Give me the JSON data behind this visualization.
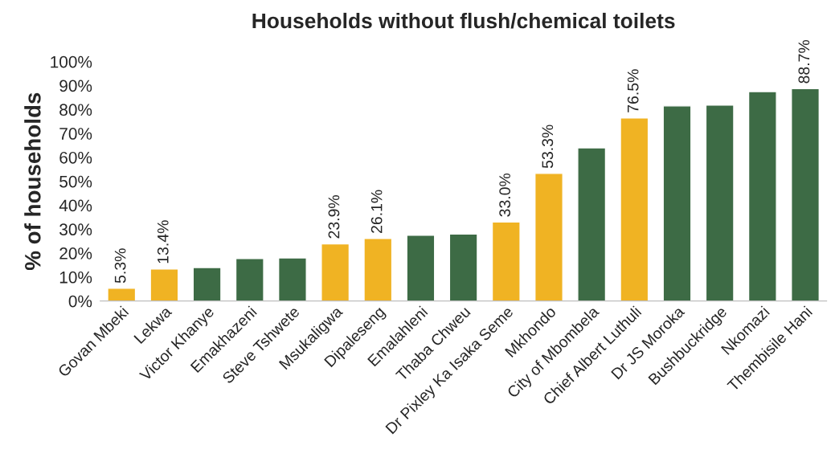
{
  "chart_data": {
    "type": "bar",
    "title": "Households without flush/chemical toilets",
    "ylabel": "% of households",
    "categories": [
      "Govan Mbeki",
      "Lekwa",
      "Victor Khanye",
      "Emakhazeni",
      "Steve Tshwete",
      "Msukaligwa",
      "Dipaleseng",
      "Emalahleni",
      "Thaba Chweu",
      "Dr Pixley Ka Isaka Seme",
      "Mkhondo",
      "City of Mbombela",
      "Chief Albert Luthuli",
      "Dr JS Moroka",
      "Bushbuckridge",
      "Nkomazi",
      "Thembisile Hani"
    ],
    "values": [
      5.3,
      13.4,
      14.0,
      17.7,
      18.0,
      23.9,
      26.1,
      27.5,
      28.0,
      33.0,
      53.3,
      64.0,
      76.5,
      81.5,
      81.8,
      87.5,
      88.7
    ],
    "value_labels": [
      "5.3%",
      "13.4%",
      null,
      null,
      null,
      "23.9%",
      "26.1%",
      null,
      null,
      "33.0%",
      "53.3%",
      null,
      "76.5%",
      null,
      null,
      null,
      "88.7%"
    ],
    "colors": [
      "#f0b323",
      "#f0b323",
      "#3d6b45",
      "#3d6b45",
      "#3d6b45",
      "#f0b323",
      "#f0b323",
      "#3d6b45",
      "#3d6b45",
      "#f0b323",
      "#f0b323",
      "#3d6b45",
      "#f0b323",
      "#3d6b45",
      "#3d6b45",
      "#3d6b45",
      "#3d6b45"
    ],
    "ylim": [
      0,
      100
    ],
    "yticks": [
      {
        "value": 0,
        "label": "0%"
      },
      {
        "value": 10,
        "label": "10%"
      },
      {
        "value": 20,
        "label": "20%"
      },
      {
        "value": 30,
        "label": "30%"
      },
      {
        "value": 40,
        "label": "40%"
      },
      {
        "value": 50,
        "label": "50%"
      },
      {
        "value": 60,
        "label": "60%"
      },
      {
        "value": 70,
        "label": "70%"
      },
      {
        "value": 80,
        "label": "80%"
      },
      {
        "value": 90,
        "label": "90%"
      },
      {
        "value": 100,
        "label": "100%"
      }
    ],
    "grid": false
  }
}
